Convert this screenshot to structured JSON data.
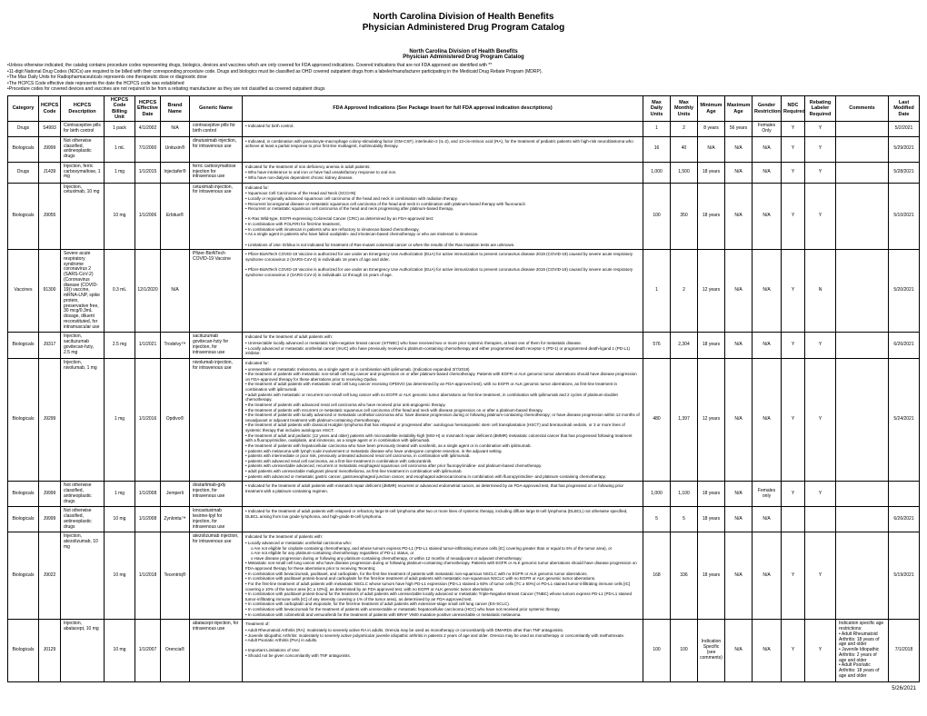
{
  "header": {
    "line1": "North Carolina Division of Health Benefits",
    "line2": "Physician Administered Drug Program Catalog"
  },
  "subheader": {
    "line1": "North Carolina Division of Health Benefits",
    "line2": "Physician Administered Drug Program Catalog"
  },
  "notes": [
    "•Unless otherwise indicated, the catalog contains procedure codes representing drugs, biologics, devices and vaccines which are only covered for FDA approved indications. Covered indications that are not FDA approved are identified with **",
    "•11-digit National Drug Codes (NDCs) are required to be billed with their corresponding procedure code. Drugs and biologics must be classified as OHD covered outpatient drugs from a labeler/manufacturer participating in the Medicaid Drug Rebate Program (MDRP).",
    "•The Max Daily Units for Radiopharmaceuticals represents one therapeutic dose or diagnostic dose",
    "•The HCPCS Code effective date represents the date the HCPCS code was established",
    "•Procedure codes for covered devices and vaccines are not required to be from a rebating manufacturer as they are not classified as covered outpatient drugs"
  ],
  "columns": [
    "Category",
    "HCPCS Code",
    "HCPCS Description",
    "HCPCS Code Billing Unit",
    "HCPCS Effective Date",
    "Brand Name",
    "Generic Name",
    "FDA Approved Indications\n(See Package Insert for full FDA approval indication descriptions)",
    "Max Daily Units",
    "Max Monthly Units",
    "Minimum Age",
    "Maximum Age",
    "Gender Restrictions",
    "NDC Required",
    "Rebating Labeler Required",
    "Comments",
    "Last Modified Date"
  ],
  "col_widths": [
    "34px",
    "24px",
    "48px",
    "34px",
    "28px",
    "32px",
    "58px",
    "auto",
    "30px",
    "30px",
    "30px",
    "30px",
    "32px",
    "26px",
    "34px",
    "58px",
    "34px"
  ],
  "rows": [
    {
      "category": "Drugs",
      "code": "S4993",
      "desc": "Contraceptive pills for birth control",
      "unit": "1 pack",
      "eff": "4/1/2002",
      "brand": "N/A",
      "generic": "contraceptive pills for birth control",
      "indications": [
        "Indicated for birth control."
      ],
      "maxDaily": "1",
      "maxMonthly": "2",
      "minAge": "8 years",
      "maxAge": "56 years",
      "gender": "Females Only",
      "ndc": "Y",
      "rebate": "Y",
      "comments": "",
      "lastMod": "5/2/2021"
    },
    {
      "category": "Biologicals",
      "code": "J9999",
      "desc": "Not otherwise classified, antineoplastic drugs",
      "unit": "1 mL",
      "eff": "7/1/2000",
      "brand": "Unituxin®",
      "generic": "dinutuximab injection, for intravenous use",
      "indications": [
        "Indicated, in combination with granulocyte-macrophage colony-stimulating factor (GM-CSF), interleukin-2 (IL-2), and 13-cis-retinoic acid (RA), for the treatment of pediatric patients with high-risk neuroblastoma who achieve at least a partial response to prior first-line multiagent, multimodality therapy."
      ],
      "maxDaily": "16",
      "maxMonthly": "40",
      "minAge": "N/A",
      "maxAge": "N/A",
      "gender": "N/A",
      "ndc": "Y",
      "rebate": "Y",
      "comments": "",
      "lastMod": "5/29/2021"
    },
    {
      "category": "Drugs",
      "code": "J1439",
      "desc": "Injection, ferric carboxymaltose, 1 mg",
      "unit": "1 mg",
      "eff": "1/1/2015",
      "brand": "Injectafer®",
      "generic": "ferric carboxymaltose injection for intravenous use",
      "ind_header": "Indicated for the treatment of iron deficiency anemia in adult patients:",
      "indications": [
        "Who have intolerance to oral iron or have had unsatisfactory response to oral iron.",
        "Who have non-dialysis dependent chronic kidney disease."
      ],
      "maxDaily": "1,000",
      "maxMonthly": "1,500",
      "minAge": "18 years",
      "maxAge": "N/A",
      "gender": "N/A",
      "ndc": "Y",
      "rebate": "Y",
      "comments": "",
      "lastMod": "5/28/2021"
    },
    {
      "category": "Biologicals",
      "code": "J9055",
      "desc": "Injection, cetuximab, 10 mg",
      "unit": "10 mg",
      "eff": "1/1/2006",
      "brand": "Erbitux®",
      "generic": "cetuximab injection, for intravenous use",
      "ind_header": "Indicated for:",
      "indications": [
        "Squamous Cell Carcinoma of the Head and Neck (SCCHN)",
        "Locally or regionally advanced squamous cell carcinoma of the head and neck in combination with radiation therapy.",
        "Recurrent locoregional disease or metastatic squamous cell carcinoma of the head and neck in combination with platinum-based therapy with fluorouracil.",
        "Recurrent or metastatic squamous cell carcinoma of the head and neck progressing after platinum-based therapy.",
        "",
        "K-Ras Wild-type, EGFR-expressing Colorectal Cancer (CRC) as determined by an FDA-approved test:",
        "In combination with FOLFIRI for first-line treatment,",
        "In combination with irinotecan in patients who are refractory to irinotecan-based chemotherapy,",
        "As a single agent in patients who have failed oxaliplatin- and irinotecan-based chemotherapy or who are intolerant to irinotecan.",
        "",
        "Limitations of Use: Erbitux is not indicated for treatment of Ras-mutant colorectal cancer or when the results of the Ras mutation tests are unknown."
      ],
      "maxDaily": "100",
      "maxMonthly": "350",
      "minAge": "18 years",
      "maxAge": "N/A",
      "gender": "N/A",
      "ndc": "Y",
      "rebate": "Y",
      "comments": "",
      "lastMod": "5/10/2021"
    },
    {
      "category": "Vaccines",
      "code": "91300",
      "desc": "Severe acute respiratory syndrome coronavirus 2 (SARS-CoV-2) (Coronavirus disease (COVID-19)) vaccine, mRNA-LNP, spike protein, preservative free, 30 mcg/0.3mL dosage, diluent reconstituted, for intramuscular use",
      "unit": "0.3 mL",
      "eff": "12/1/2020",
      "brand": "N/A",
      "generic": "Pfizer-BioNTech COVID-19 Vaccine",
      "indications": [
        "Pfizer-BioNTech COVID-19 Vaccine is authorized for use under an Emergency Use Authorization (EUA) for active immunization to prevent coronavirus disease 2019 (COVID-19) caused by severe acute respiratory syndrome coronavirus 2 (SARS-CoV-2) in individuals 16 years of age and older.",
        "",
        "Pfizer-BioNTech COVID-19 Vaccine is authorized for use under an Emergency Use Authorization (EUA) for active immunization to prevent coronavirus disease 2019 (COVID-19) caused by severe acute respiratory syndrome coronavirus 2 (SARS-CoV-2) in individuals 12 through 15 years of age."
      ],
      "maxDaily": "1",
      "maxMonthly": "2",
      "minAge": "12 years",
      "maxAge": "N/A",
      "gender": "N/A",
      "ndc": "Y",
      "rebate": "N",
      "comments": "",
      "lastMod": "5/20/2021"
    },
    {
      "category": "Biologicals",
      "code": "J9317",
      "desc": "Injection, sacituzumab govitecan-hziy, 2.5 mg",
      "unit": "2.5 mg",
      "eff": "1/1/2021",
      "brand": "Trodelvy™",
      "generic": "sacituzumab govitecan-hziy for injection, for intravenous use",
      "ind_header": "Indicated for the treatment of adult patients with:",
      "indications": [
        "Unresectable locally advanced or metastatic triple-negative breast cancer (mTNBC) who have received two or more prior systemic therapies, at least one of them for metastatic disease.",
        "Locally advanced or metastatic urothelial cancer (mUC) who have previously received a platinum-containing chemotherapy and either programmed death receptor-1 (PD-1) or programmed death-ligand 1 (PD-L1) inhibitor."
      ],
      "maxDaily": "576",
      "maxMonthly": "2,304",
      "minAge": "18 years",
      "maxAge": "N/A",
      "gender": "N/A",
      "ndc": "Y",
      "rebate": "Y",
      "comments": "",
      "lastMod": "6/26/2021"
    },
    {
      "category": "Biologicals",
      "code": "J9299",
      "desc": "Injection, nivolumab, 1 mg",
      "unit": "1 mg",
      "eff": "1/1/2016",
      "brand": "Opdivo®",
      "generic": "nivolumab injection, for intravenous use",
      "ind_header": "Indicated for:",
      "indications": [
        "unresectable or metastatic melanoma, as a single agent or in combination with ipilimumab. (Indication expanded 3/7/2019)",
        "the treatment of patients with metastatic non-small cell lung cancer and progression on or after platinum-based chemotherapy. Patients with EGFR or ALK genomic tumor aberrations should have disease progression on FDA-approved therapy for these aberrations prior to receiving Opdivo.",
        "the treatment of adult patients with metastatic small cell lung cancer receiving OPDIVO (as determined by an FDA-approved test), with no EGFR or ALK genomic tumor aberrations, as first-line treatment in combination with ipilimumab.",
        "adult patients with metastatic or recurrent non-small cell lung cancer with no EGFR or ALK genomic tumor aberrations as first-line treatment, in combination with ipilimumab and 2 cycles of platinum-doublet chemotherapy.",
        "the treatment of patients with advanced renal cell carcinoma who have received prior anti-angiogenic therapy.",
        "the treatment of patients with recurrent or metastatic squamous cell carcinoma of the head and neck with disease progression on or after a platinum-based therapy.",
        "the treatment of patients with locally advanced or metastatic urothelial carcinoma who: have disease progression during or following platinum-containing chemotherapy; or have disease progression within 12 months of neoadjuvant or adjuvant treatment with platinum-containing chemotherapy.",
        "the treatment of adult patients with classical Hodgkin lymphoma that has relapsed or progressed after: autologous hematopoietic stem cell transplantation (HSCT) and brentuximab vedotin, or 3 or more lines of systemic therapy that includes autologous HSCT.",
        "the treatment of adult and pediatric (12 years and older) patients with microsatellite instability-high (MSI-H) or mismatch repair deficient (dMMR) metastatic colorectal cancer that has progressed following treatment with a fluoropyrimidine, oxaliplatin, and irinotecan, as a single agent or in combination with ipilimumab.",
        "the treatment of patients with hepatocellular carcinoma who have been previously treated with sorafenib, as a single agent or in combination with ipilimumab.",
        "patients with melanoma with lymph node involvement or metastatic disease who have undergone complete resection, in the adjuvant setting.",
        "patients with intermediate or poor risk, previously untreated advanced renal cell carcinoma, in combination with ipilimumab.",
        "patients with advanced renal cell carcinoma, as a first-line treatment in combination with cabozantinib.",
        "patients with unresectable advanced, recurrent or metastatic esophageal squamous cell carcinoma after prior fluoropyrimidine- and platinum-based chemotherapy.",
        "adult patients with unresectable malignant pleural mesothelioma, as first-line treatment in combination with ipilimumab.",
        "patients with advanced or metastatic gastric cancer, gastroesophageal junction cancer, and esophageal adenocarcinoma in combination with fluoropyrimidine- and platinum-containing chemotherapy."
      ],
      "maxDaily": "480",
      "maxMonthly": "1,397",
      "minAge": "12 years",
      "maxAge": "N/A",
      "gender": "N/A",
      "ndc": "Y",
      "rebate": "Y",
      "comments": "",
      "lastMod": "5/24/2021"
    },
    {
      "category": "Biologicals",
      "code": "J9999",
      "desc": "Not otherwise classified, antineoplastic drugs",
      "unit": "1 mg",
      "eff": "1/1/2008",
      "brand": "Jemperli",
      "generic": "dostarlimab-gxly injection, for intravenous use",
      "indications": [
        "Indicated for the treatment of adult patients with mismatch repair deficient (dMMR) recurrent or advanced endometrial cancer, as determined by an FDA-approved test, that has progressed on or following prior treatment with a platinum-containing regimen."
      ],
      "maxDaily": "1,000",
      "maxMonthly": "1,100",
      "minAge": "18 years",
      "maxAge": "N/A",
      "gender": "Females only",
      "ndc": "Y",
      "rebate": "Y",
      "comments": "",
      "lastMod": ""
    },
    {
      "category": "Biologicals",
      "code": "J9999",
      "desc": "Not otherwise classified, antineoplastic drugs",
      "unit": "10 mg",
      "eff": "1/1/2008",
      "brand": "Zynlonta™",
      "generic": "loncastuximab tesirine-lpyl for injection, for intravenous use",
      "indications": [
        "Indicated for the treatment of adult patients with relapsed or refractory large B-cell lymphoma after two or more lines of systemic therapy, including diffuse large B-cell lymphoma (DLBCL) not otherwise specified, DLBCL arising from low grade lymphoma, and high-grade B-cell lymphoma."
      ],
      "maxDaily": "5",
      "maxMonthly": "5",
      "minAge": "18 years",
      "maxAge": "N/A",
      "gender": "N/A",
      "ndc": "",
      "rebate": "",
      "comments": "",
      "lastMod": "6/26/2021"
    },
    {
      "category": "Biologicals",
      "code": "J9022",
      "desc": "Injection, atezolizumab, 10 mg",
      "unit": "10 mg",
      "eff": "1/1/2018",
      "brand": "Tecentriq®",
      "generic": "atezolizumab injection, for intravenous use",
      "ind_header": "Indicated for the treatment of patients with:",
      "indications": [
        "Locally advanced or metastatic urothelial carcinoma who:",
        "o Are not eligible for cisplatin-containing chemotherapy, and whose tumors express PD-L1 (PD-L1 stained tumor-infiltrating immune cells [IC] covering greater than or equal to 5% of the tumor area), or",
        "o Are not eligible for any platinum-containing chemotherapy regardless of PD-L1 status, or",
        "o Have disease progression during or following any platinum-containing chemotherapy, or within 12 months of neoadjuvant or adjuvant chemotherapy;",
        "Metastatic non-small cell lung cancer who have disease progression during or following platinum-containing chemotherapy. Patients with EGFR or ALK genomic tumor aberrations should have disease progression on FDA-approved therapy for these aberrations prior to receiving Tecentriq;",
        "In combination with bevacizumab, paclitaxel, and carboplatin, for the first-line treatment of patients with metastatic non-squamous NSCLC with no EGFR or ALK genomic tumor aberrations.",
        "In combination with paclitaxel protein-bound and carboplatin for the first-line treatment of adult patients with metastatic non-squamous NSCLC with no EGFR or ALK genomic tumor aberrations.",
        "For the first-line treatment of adult patients with metastatic NSCLC whose tumors have high PD-L1 expression (PD-L1 stained ≥ 50% of tumor cells [TC ≥ 50%] or PD-L1 stained tumor-infiltrating immune cells [IC] covering ≥ 10% of the tumor area [IC ≥ 10%]), as determined by an FDA approved test, with no EGFR or ALK genomic tumor aberrations.",
        "In combination with paclitaxel protein-bound for the treatment of adult patients with unresectable locally advanced or metastatic Triple-Negative Breast Cancer (TNBC) whose tumors express PD-L1 (PD-L1 stained tumor-infiltrating immune cells [IC] of any intensity covering ≥ 1% of the tumor area), as determined by an FDA-approved test.",
        "In combination with carboplatin and etoposide, for the first-line treatment of adult patients with extensive-stage small cell lung cancer (ES-SCLC).",
        "In combination with bevacizumab for the treatment of patients with unresectable or metastatic hepatocellular carcinoma (HCC) who have not received prior systemic therapy.",
        "In combination with cobimetinib and vemurafenib for the treatment of patients with BRAF V600 mutation-positive unresectable or metastatic melanoma."
      ],
      "maxDaily": "168",
      "maxMonthly": "336",
      "minAge": "18 years",
      "maxAge": "N/A",
      "gender": "N/A",
      "ndc": "Y",
      "rebate": "Y",
      "comments": "",
      "lastMod": "5/19/2021"
    },
    {
      "category": "Biologicals",
      "code": "J0129",
      "desc": "Injection, abatacept, 10 mg",
      "unit": "10 mg",
      "eff": "1/1/2007",
      "brand": "Orencia®",
      "generic": "abatacept injection, for intravenous use",
      "ind_header": "Treatment of:",
      "indications": [
        "Adult Rheumatoid Arthritis (RA): moderately to severely active RA in adults. Orencia may be used as monotherapy or concomitantly with DMARDs other than TNF antagonists.",
        "Juvenile Idiopathic Arthritis: moderately to severely active polyarticular juvenile idiopathic arthritis in patients 2 years of age and older. Orencia may be used as monotherapy or concomitantly with methotrexate.",
        "Adult Psoriatic Arthritis (PsA) in adults.",
        "",
        "Important Limitations of Use:",
        "Should not be given concomitantly with TNF antagonists."
      ],
      "maxDaily": "100",
      "maxMonthly": "100",
      "minAge": "Indication Specific (see comments)",
      "maxAge": "N/A",
      "gender": "N/A",
      "ndc": "Y",
      "rebate": "Y",
      "comments": "Indication specific age restrictions:\n• Adult Rheumatoid Arthritis: 18 years of age and older\n• Juvenile Idiopathic Arthritis: 2 years of age and older\n• Adult Psoriatic Arthritis: 18 years of age and older",
      "lastMod": "7/1/2018"
    }
  ],
  "footer_date": "5/26/2021"
}
